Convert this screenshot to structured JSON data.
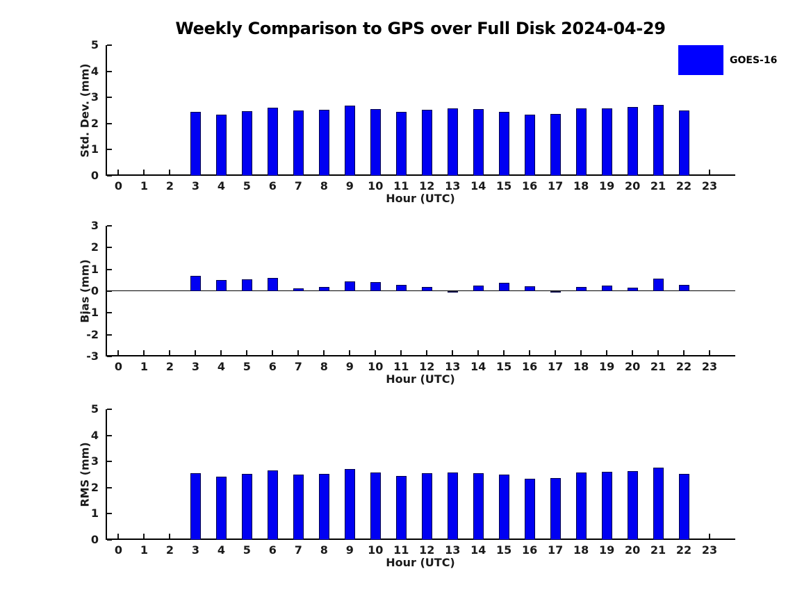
{
  "title": "Weekly Comparison to GPS over Full Disk 2024-04-29",
  "legend": {
    "label": "GOES-16",
    "swatch_color": "#0000ff",
    "position": "upper-right"
  },
  "colors": {
    "bar_fill": "#0000f2",
    "bar_edge": "#00004a",
    "axis": "#000000",
    "text": "#1a1a1a"
  },
  "chart_data": [
    {
      "type": "bar",
      "name": "std-dev",
      "ylabel": "Std. Dev. (mm)",
      "xlabel": "Hour (UTC)",
      "ylim": [
        0,
        5
      ],
      "yticks": [
        0,
        1,
        2,
        3,
        4,
        5
      ],
      "xlim": [
        -0.5,
        24
      ],
      "xticks": [
        0,
        1,
        2,
        3,
        4,
        5,
        6,
        7,
        8,
        9,
        10,
        11,
        12,
        13,
        14,
        15,
        16,
        17,
        18,
        19,
        20,
        21,
        22,
        23
      ],
      "grid": false,
      "series": [
        {
          "name": "GOES-16",
          "x": [
            3,
            4,
            5,
            6,
            7,
            8,
            9,
            10,
            11,
            12,
            13,
            14,
            15,
            16,
            17,
            18,
            19,
            20,
            21,
            22
          ],
          "values": [
            2.44,
            2.35,
            2.47,
            2.6,
            2.5,
            2.52,
            2.68,
            2.55,
            2.44,
            2.53,
            2.58,
            2.55,
            2.46,
            2.33,
            2.36,
            2.57,
            2.59,
            2.63,
            2.71,
            2.51
          ]
        }
      ]
    },
    {
      "type": "bar",
      "name": "bias",
      "ylabel": "Bias (mm)",
      "xlabel": "Hour (UTC)",
      "ylim": [
        -3,
        3
      ],
      "yticks": [
        -3,
        -2,
        -1,
        0,
        1,
        2,
        3
      ],
      "xlim": [
        -0.5,
        24
      ],
      "xticks": [
        0,
        1,
        2,
        3,
        4,
        5,
        6,
        7,
        8,
        9,
        10,
        11,
        12,
        13,
        14,
        15,
        16,
        17,
        18,
        19,
        20,
        21,
        22,
        23
      ],
      "grid": false,
      "zero_line": true,
      "series": [
        {
          "name": "GOES-16",
          "x": [
            3,
            4,
            5,
            6,
            7,
            8,
            9,
            10,
            11,
            12,
            13,
            14,
            15,
            16,
            17,
            18,
            19,
            20,
            21,
            22
          ],
          "values": [
            0.7,
            0.52,
            0.55,
            0.6,
            0.13,
            0.2,
            0.45,
            0.4,
            0.3,
            0.2,
            -0.02,
            0.24,
            0.38,
            0.21,
            -0.06,
            0.18,
            0.24,
            0.17,
            0.57,
            0.3
          ]
        }
      ]
    },
    {
      "type": "bar",
      "name": "rms",
      "ylabel": "RMS (mm)",
      "xlabel": "Hour (UTC)",
      "ylim": [
        0,
        5
      ],
      "yticks": [
        0,
        1,
        2,
        3,
        4,
        5
      ],
      "xlim": [
        -0.5,
        24
      ],
      "xticks": [
        0,
        1,
        2,
        3,
        4,
        5,
        6,
        7,
        8,
        9,
        10,
        11,
        12,
        13,
        14,
        15,
        16,
        17,
        18,
        19,
        20,
        21,
        22,
        23
      ],
      "grid": false,
      "series": [
        {
          "name": "GOES-16",
          "x": [
            3,
            4,
            5,
            6,
            7,
            8,
            9,
            10,
            11,
            12,
            13,
            14,
            15,
            16,
            17,
            18,
            19,
            20,
            21,
            22
          ],
          "values": [
            2.54,
            2.41,
            2.53,
            2.67,
            2.5,
            2.53,
            2.72,
            2.58,
            2.46,
            2.54,
            2.58,
            2.56,
            2.49,
            2.34,
            2.36,
            2.58,
            2.6,
            2.64,
            2.77,
            2.53
          ]
        }
      ]
    }
  ]
}
